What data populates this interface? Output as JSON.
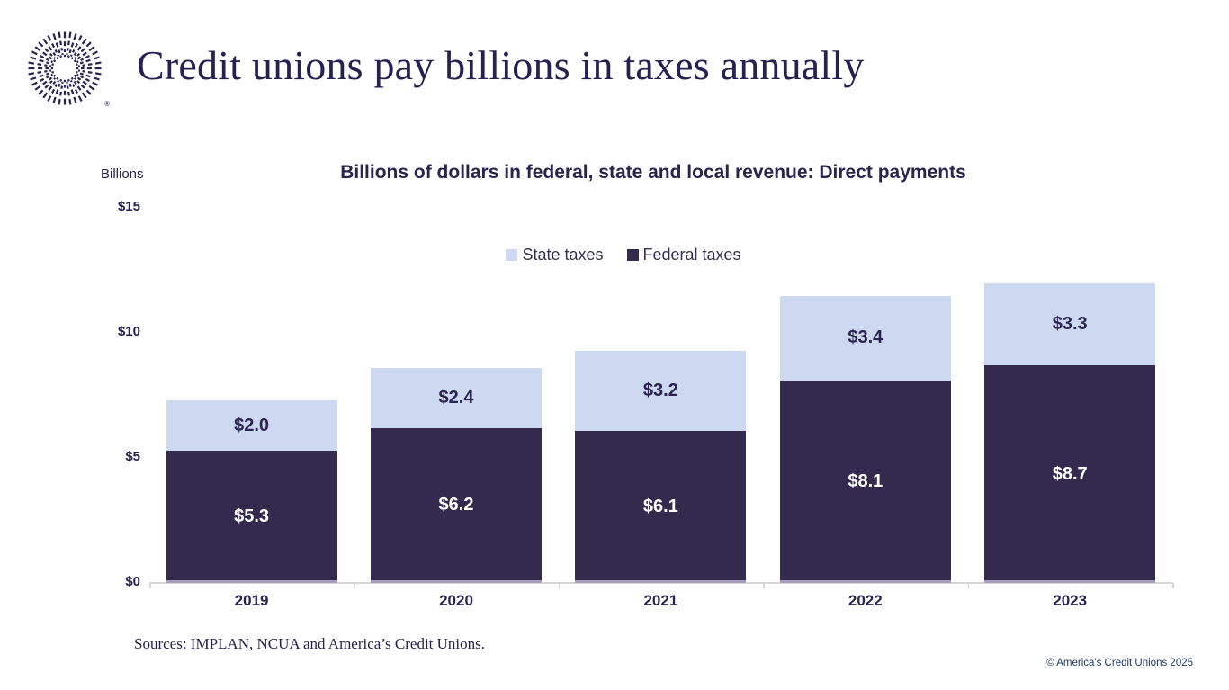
{
  "header": {
    "title": "Credit unions pay billions in taxes annually",
    "logo_registered_mark": "®"
  },
  "chart": {
    "axis_unit_label": "Billions",
    "title": "Billions of dollars in federal, state and local revenue: Direct payments"
  },
  "chart_data": {
    "type": "bar",
    "stacked": true,
    "title": "Billions of dollars in federal, state and local revenue: Direct payments",
    "categories": [
      "2019",
      "2020",
      "2021",
      "2022",
      "2023"
    ],
    "series": [
      {
        "name": "Federal taxes",
        "color": "#332a4e",
        "label_color": "#ffffff",
        "values": [
          5.3,
          6.2,
          6.1,
          8.1,
          8.7
        ],
        "labels": [
          "$5.3",
          "$6.2",
          "$6.1",
          "$8.1",
          "$8.7"
        ]
      },
      {
        "name": "State taxes",
        "color": "#ccd9f1",
        "label_color": "#2b2350",
        "values": [
          2.0,
          2.4,
          3.2,
          3.4,
          3.3
        ],
        "labels": [
          "$2.0",
          "$2.4",
          "$3.2",
          "$3.4",
          "$3.3"
        ]
      }
    ],
    "legend": [
      {
        "label": "State taxes",
        "color": "#ccd9f1"
      },
      {
        "label": "Federal taxes",
        "color": "#332a4e"
      }
    ],
    "legend_position": "top-center",
    "grid": false,
    "ylabel": "Billions",
    "ylim": [
      0,
      15
    ],
    "y_ticks": [
      {
        "value": 0,
        "label": "$0"
      },
      {
        "value": 5,
        "label": "$5"
      },
      {
        "value": 10,
        "label": "$10"
      },
      {
        "value": 15,
        "label": "$15"
      }
    ]
  },
  "footer": {
    "sources": "Sources: IMPLAN, NCUA and America’s Credit Unions.",
    "copyright": "© America's Credit Unions 2025"
  }
}
